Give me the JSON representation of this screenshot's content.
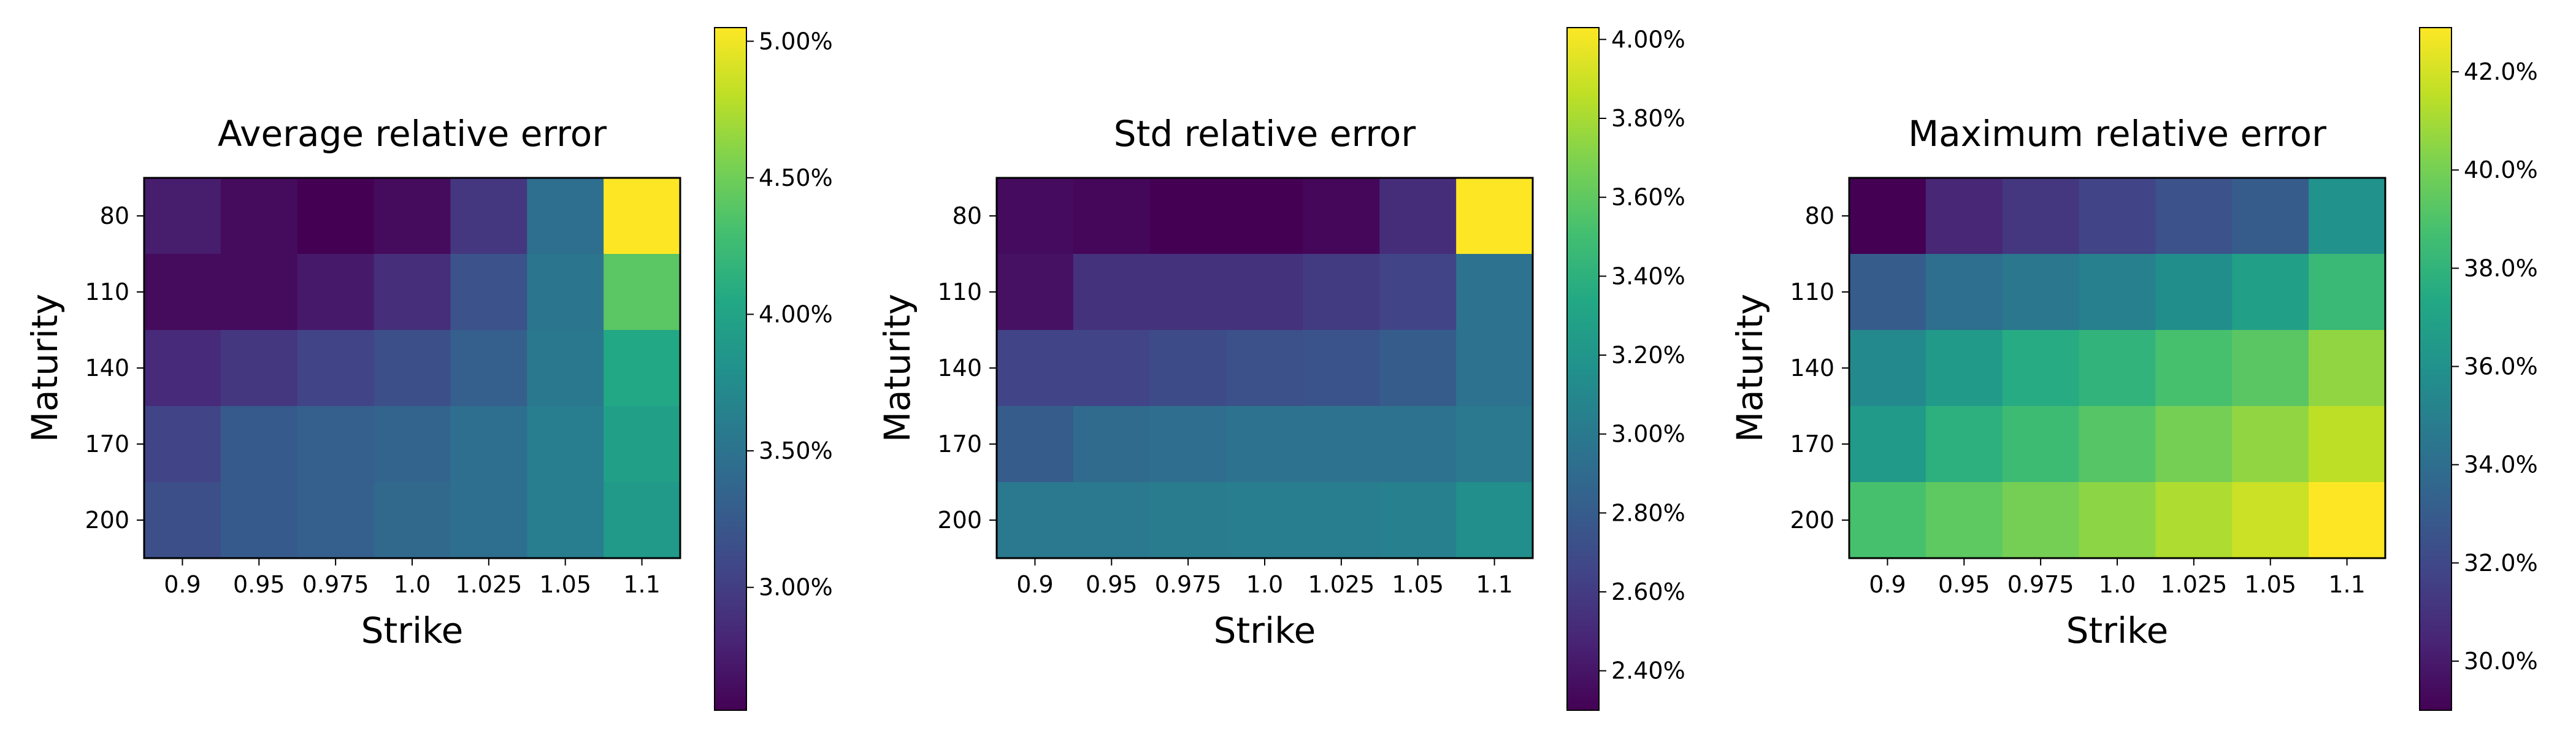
{
  "chart_data": [
    {
      "type": "heatmap",
      "title": "Average relative error",
      "xlabel": "Strike",
      "ylabel": "Maturity",
      "x_categories": [
        "0.9",
        "0.95",
        "0.975",
        "1.0",
        "1.025",
        "1.05",
        "1.1"
      ],
      "y_categories": [
        "80",
        "110",
        "140",
        "170",
        "200"
      ],
      "values": [
        [
          2.75,
          2.62,
          2.55,
          2.62,
          2.95,
          3.45,
          5.05
        ],
        [
          2.62,
          2.62,
          2.72,
          2.88,
          3.18,
          3.52,
          4.4
        ],
        [
          2.85,
          2.95,
          3.05,
          3.15,
          3.3,
          3.55,
          4.05
        ],
        [
          3.05,
          3.25,
          3.3,
          3.35,
          3.45,
          3.6,
          3.95
        ],
        [
          3.15,
          3.25,
          3.3,
          3.4,
          3.45,
          3.6,
          3.9
        ]
      ],
      "value_format": "%",
      "colorbar": {
        "range": [
          2.55,
          5.05
        ],
        "ticks": [
          3.0,
          3.5,
          4.0,
          4.5,
          5.0
        ],
        "tick_labels": [
          "3.00%",
          "3.50%",
          "4.00%",
          "4.50%",
          "5.00%"
        ]
      },
      "colormap": "viridis"
    },
    {
      "type": "heatmap",
      "title": "Std relative error",
      "xlabel": "Strike",
      "ylabel": "Maturity",
      "x_categories": [
        "0.9",
        "0.95",
        "0.975",
        "1.0",
        "1.025",
        "1.05",
        "1.1"
      ],
      "y_categories": [
        "80",
        "110",
        "140",
        "170",
        "200"
      ],
      "values": [
        [
          2.35,
          2.33,
          2.3,
          2.3,
          2.33,
          2.52,
          4.03
        ],
        [
          2.38,
          2.55,
          2.55,
          2.55,
          2.6,
          2.65,
          2.95
        ],
        [
          2.65,
          2.65,
          2.7,
          2.72,
          2.75,
          2.8,
          2.95
        ],
        [
          2.8,
          2.9,
          2.92,
          2.95,
          2.95,
          2.95,
          3.0
        ],
        [
          3.0,
          3.0,
          3.02,
          3.03,
          3.03,
          3.05,
          3.15
        ]
      ],
      "value_format": "%",
      "colorbar": {
        "range": [
          2.3,
          4.03
        ],
        "ticks": [
          2.4,
          2.6,
          2.8,
          3.0,
          3.2,
          3.4,
          3.6,
          3.8,
          4.0
        ],
        "tick_labels": [
          "2.40%",
          "2.60%",
          "2.80%",
          "3.00%",
          "3.20%",
          "3.40%",
          "3.60%",
          "3.80%",
          "4.00%"
        ]
      },
      "colormap": "viridis"
    },
    {
      "type": "heatmap",
      "title": "Maximum relative error",
      "xlabel": "Strike",
      "ylabel": "Maturity",
      "x_categories": [
        "0.9",
        "0.95",
        "0.975",
        "1.0",
        "1.025",
        "1.05",
        "1.1"
      ],
      "y_categories": [
        "80",
        "110",
        "140",
        "170",
        "200"
      ],
      "values": [
        [
          29.0,
          30.5,
          31.2,
          31.8,
          32.5,
          33.0,
          36.0
        ],
        [
          33.0,
          34.0,
          34.5,
          35.0,
          35.8,
          36.8,
          38.3
        ],
        [
          35.5,
          36.5,
          37.5,
          38.0,
          38.8,
          39.3,
          40.6
        ],
        [
          36.5,
          37.8,
          38.5,
          39.2,
          40.0,
          40.6,
          41.5
        ],
        [
          38.8,
          39.4,
          40.0,
          40.5,
          41.2,
          41.8,
          42.9
        ]
      ],
      "value_format": "%",
      "colorbar": {
        "range": [
          29.0,
          42.9
        ],
        "ticks": [
          30,
          32,
          34,
          36,
          38,
          40,
          42
        ],
        "tick_labels": [
          "30.0%",
          "32.0%",
          "34.0%",
          "36.0%",
          "38.0%",
          "40.0%",
          "42.0%"
        ]
      },
      "colormap": "viridis"
    }
  ]
}
